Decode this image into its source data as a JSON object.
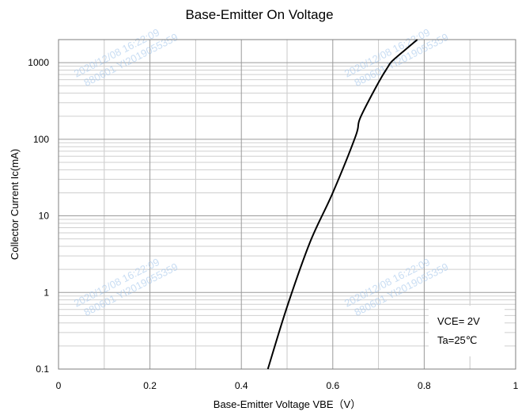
{
  "chart_data": {
    "type": "line",
    "title": "Base-Emitter On Voltage",
    "xlabel": "Base-Emitter Voltage  VBE（V）",
    "ylabel": "Collector Current  Ic(mA)",
    "x_scale": "linear",
    "y_scale": "log",
    "xlim": [
      0,
      1
    ],
    "ylim": [
      0.1,
      2000
    ],
    "x_ticks": [
      "0",
      "0.2",
      "0.4",
      "0.6",
      "0.8",
      "1"
    ],
    "x_tick_values": [
      0,
      0.2,
      0.4,
      0.6,
      0.8,
      1
    ],
    "y_ticks": [
      "0.1",
      "1",
      "10",
      "100",
      "1000"
    ],
    "y_tick_values": [
      0.1,
      1,
      10,
      100,
      1000
    ],
    "grid": true,
    "line_color": "#000000",
    "series": [
      {
        "x": [
          0.458,
          0.5,
          0.55,
          0.6,
          0.65,
          0.66,
          0.7,
          0.72,
          0.73,
          0.76,
          0.785
        ],
        "y": [
          0.1,
          0.65,
          4.5,
          20,
          110,
          190,
          550,
          870,
          1050,
          1500,
          2000
        ]
      }
    ],
    "annotations": [
      "VCE= 2V",
      "Ta=25℃"
    ]
  },
  "watermarks": [
    {
      "line1": "2020/12/08 16:22:09",
      "line2": "880601 YI2019055359"
    },
    {
      "line1": "2020/12/08 16:22:09",
      "line2": "880601 YI2019055359"
    },
    {
      "line1": "2020/12/08 16:22:09",
      "line2": "880601 YI2019055359"
    },
    {
      "line1": "2020/12/08 16:22:09",
      "line2": "880601 YI2019055359"
    }
  ]
}
